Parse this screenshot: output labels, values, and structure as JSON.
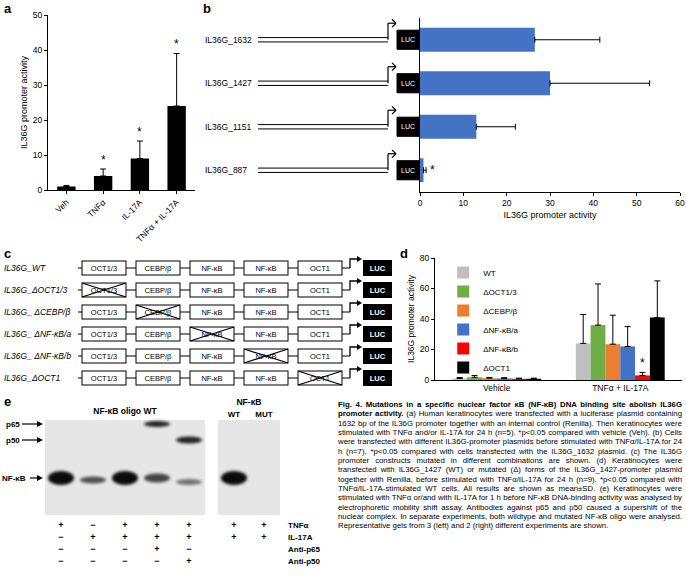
{
  "chart_data": [
    {
      "panel": "a",
      "type": "bar",
      "ylabel": "IL36G promoter activity",
      "categories": [
        "Veh",
        "TNFα",
        "IL-17A",
        "TNFα + IL-17A"
      ],
      "values": [
        1,
        4,
        9,
        24
      ],
      "errors": [
        0.3,
        2,
        5,
        15
      ],
      "significance": [
        null,
        "*",
        "*",
        "*"
      ],
      "color": "#000000",
      "ylim": [
        0,
        50
      ],
      "yticks": [
        0,
        10,
        20,
        30,
        40,
        50
      ],
      "grid": false
    },
    {
      "panel": "b",
      "type": "bar",
      "orientation": "horizontal",
      "xlabel": "IL36G promoter activity",
      "categories": [
        "IL36G_1632",
        "IL36G_1427",
        "IL36G_1151",
        "IL36G_887"
      ],
      "values": [
        26.5,
        30,
        13,
        0.8
      ],
      "errors": [
        15,
        23,
        9,
        0.6
      ],
      "significance": [
        null,
        null,
        null,
        "*"
      ],
      "reporter": "LUC",
      "color": "#4472c4",
      "xlim": [
        0,
        60
      ],
      "xticks": [
        0,
        10,
        20,
        30,
        40,
        50,
        60
      ],
      "tick_labels": "x",
      "grid": false
    },
    {
      "panel": "d",
      "type": "bar",
      "ylabel": "IL36G promoter activity",
      "categories": [
        "Vehicle",
        "TNFα + IL-17A"
      ],
      "series": [
        {
          "name": "WT",
          "color": "#bfbfbf",
          "values": [
            1,
            24
          ],
          "errors": [
            0.6,
            19
          ],
          "significance": [
            null,
            null
          ]
        },
        {
          "name": "ΔOCT1/3",
          "color": "#70ad47",
          "values": [
            1.8,
            36
          ],
          "errors": [
            1.2,
            27
          ],
          "significance": [
            null,
            null
          ]
        },
        {
          "name": "ΔCEBP/β",
          "color": "#ed7d31",
          "values": [
            1.2,
            23.5
          ],
          "errors": [
            0.5,
            19
          ],
          "significance": [
            null,
            null
          ]
        },
        {
          "name": "ΔNF-κB/a",
          "color": "#4472c4",
          "values": [
            1,
            22
          ],
          "errors": [
            0.5,
            13
          ],
          "significance": [
            null,
            null
          ]
        },
        {
          "name": "ΔNF-κB/b",
          "color": "#ff0000",
          "values": [
            0.8,
            3
          ],
          "errors": [
            0.4,
            2
          ],
          "significance": [
            null,
            "*"
          ]
        },
        {
          "name": "ΔOCT1",
          "color": "#000000",
          "values": [
            0.8,
            41
          ],
          "errors": [
            0.4,
            24
          ],
          "significance": [
            null,
            null
          ]
        }
      ],
      "ylim": [
        0,
        80
      ],
      "yticks": [
        0,
        20,
        40,
        60,
        80
      ],
      "legend": "top-left",
      "grid": false
    }
  ],
  "diagram": {
    "panel": "c",
    "elements": [
      "OCT1/3",
      "CEBP/β",
      "NF-κB",
      "NF-κB",
      "OCT1"
    ],
    "reporter": "LUC",
    "constructs": [
      {
        "label": "IL36G_WT",
        "mutated": [
          false,
          false,
          false,
          false,
          false
        ]
      },
      {
        "label": "IL36G_ΔOCT1/3",
        "mutated": [
          true,
          false,
          false,
          false,
          false
        ]
      },
      {
        "label": "IL36G_ ΔCEBP/β",
        "mutated": [
          false,
          true,
          false,
          false,
          false
        ]
      },
      {
        "label": "IL36G_ ΔNF-κB/a",
        "mutated": [
          false,
          false,
          true,
          false,
          false
        ]
      },
      {
        "label": "IL36G_ ΔNF-κB/b",
        "mutated": [
          false,
          false,
          false,
          true,
          false
        ]
      },
      {
        "label": "IL36G_ΔOCT1",
        "mutated": [
          false,
          false,
          false,
          false,
          true
        ]
      }
    ]
  },
  "gel": {
    "panel": "e",
    "left_title": "NF-κB oligo WT",
    "right_title": "NF-κB",
    "right_lanes": [
      "WT",
      "MUT"
    ],
    "band_labels": [
      "p65",
      "p50",
      "NF-κB"
    ],
    "rows": [
      {
        "label": "TNFα",
        "left": [
          "+",
          "−",
          "+",
          "+",
          "+"
        ],
        "right": [
          "+",
          "+"
        ]
      },
      {
        "label": "IL-17A",
        "left": [
          "−",
          "+",
          "+",
          "+",
          "+"
        ],
        "right": [
          "+",
          "+"
        ]
      },
      {
        "label": "Anti-p65",
        "left": [
          "−",
          "−",
          "−",
          "+",
          "−"
        ]
      },
      {
        "label": "Anti-p50",
        "left": [
          "−",
          "−",
          "−",
          "−",
          "+"
        ]
      }
    ]
  },
  "caption": {
    "title": "Fig. 4. Mutations in a specific nuclear factor κB (NF-κB) DNA binding site abolish IL36G promoter activity.",
    "text": "(a) Human keratinocytes were transfected with a luciferase plasmid containing 1632 bp of the IL36G promoter together with an internal control (Renilla). Then keratinocytes were stimulated with TNFα and/or IL-17A for 24 h (n=5). *p<0.05 compared with vehicle (Veh). (b) Cells were transfected with different IL36G-promoter plasmids before stimulated with TNFα/IL-17A for 24 h (n=7). *p<0.05 compared with cells transfected with the IL36G_1632 plasmid. (c) The IL36G promoter constructs mutated in different combinations are shown. (d) Keratinocytes were transfected with IL36G_1427 (WT) or mutated (Δ) forms of the IL36G_1427-promoter plasmid together with Renilla, before stimulated with TNFα/IL-17A for 24 h (n=9). *p<0.05 compared with TNFα/IL-17A-stimulated WT cells. All results are shown as mean±SD. (e) Keratinocytes were stimulated with TNFα or/and with IL-17A for 1 h before NF-κB DNA-binding activity was analysed by electrophoretic mobility shift assay. Antibodies against p65 and p50 caused a supershift of the nuclear complex. In separate experiments, both wildtype and mutated NF-κB oligo were analysed. Representative gels from 3 (left) and 2 (right) different experiments are shown."
  }
}
